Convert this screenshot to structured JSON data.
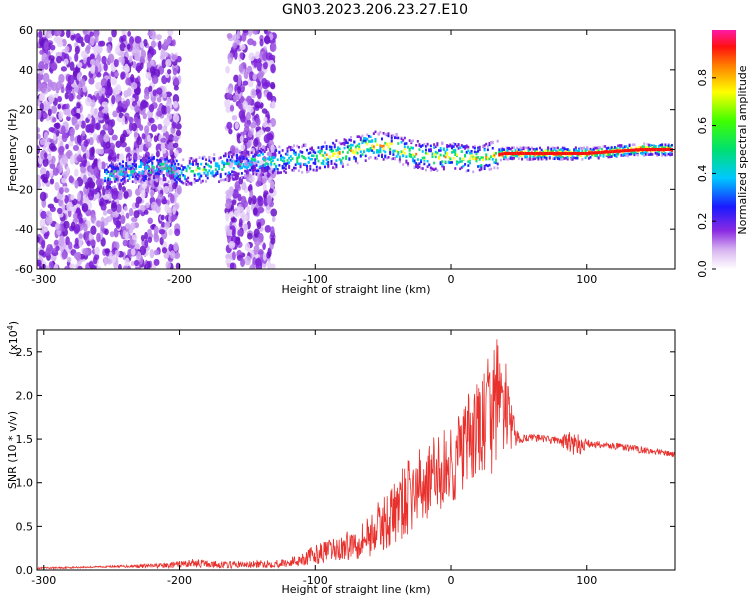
{
  "title": "GN03.2023.206.23.27.E10",
  "colors": {
    "snr_line": "#e8302c",
    "spectro_fg": "#8a2be2"
  },
  "chart_data": [
    {
      "type": "heatmap",
      "name": "spectrogram",
      "xlabel": "Height of straight line (km)",
      "ylabel": "Frequency (Hz)",
      "xlim": [
        -305,
        165
      ],
      "ylim": [
        -60,
        60
      ],
      "x_ticks": [
        -300,
        -200,
        -100,
        0,
        100
      ],
      "x_tick_labels": [
        "-300",
        "-200",
        "-100",
        "0",
        "100"
      ],
      "y_ticks": [
        -60,
        -40,
        -20,
        0,
        20,
        40,
        60
      ],
      "y_tick_labels": [
        "-60",
        "-40",
        "-20",
        "0",
        "20",
        "40",
        "60"
      ],
      "colorbar": {
        "label": "Normalized spectral amplitude",
        "range": [
          0,
          1
        ],
        "ticks": [
          0.0,
          0.2,
          0.4,
          0.6,
          0.8
        ],
        "tick_labels": [
          "0.0",
          "0.2",
          "0.4",
          "0.6",
          "0.8"
        ],
        "colormap": "rainbow (white-violet-blue-cyan-green-yellow-red-magenta)"
      },
      "ridge": {
        "x": [
          -250,
          -230,
          -210,
          -200,
          -180,
          -160,
          -140,
          -120,
          -100,
          -80,
          -60,
          -45,
          -30,
          -15,
          0,
          10,
          20,
          30,
          40,
          60,
          85,
          100,
          120,
          140,
          165
        ],
        "freq": [
          -13,
          -10,
          -9,
          -12,
          -10,
          -8,
          -6,
          -5,
          -4,
          -2,
          2,
          2,
          -2,
          -4,
          -3,
          -4,
          -5,
          -3,
          -2,
          -2,
          -2,
          -2,
          -1,
          0,
          0
        ]
      },
      "noise_regions": [
        {
          "x": [
            -305,
            -200
          ],
          "freq": [
            -60,
            60
          ]
        },
        {
          "x": [
            -165,
            -130
          ],
          "freq": [
            -60,
            60
          ]
        }
      ]
    },
    {
      "type": "line",
      "name": "snr",
      "xlabel": "Height of straight line (km)",
      "ylabel": "SNR (10 * v/v)",
      "multiplier_label": "(x10",
      "multiplier_exp": "4",
      "xlim": [
        -305,
        165
      ],
      "ylim": [
        0,
        2.75
      ],
      "x_ticks": [
        -300,
        -200,
        -100,
        0,
        100
      ],
      "x_tick_labels": [
        "-300",
        "-200",
        "-100",
        "0",
        "100"
      ],
      "y_ticks": [
        0.0,
        0.5,
        1.0,
        1.5,
        2.0,
        2.5
      ],
      "y_tick_labels": [
        "0.0",
        "0.5",
        "1.0",
        "1.5",
        "2.0",
        "2.5"
      ],
      "series": [
        {
          "x": [
            -305,
            -250,
            -210,
            -190,
            -170,
            -150,
            -120,
            -105,
            -95,
            -80,
            -60,
            -45,
            -30,
            -15,
            0,
            10,
            20,
            30,
            35,
            40,
            45,
            50,
            60,
            80,
            90,
            95,
            100,
            120,
            140,
            165
          ],
          "y": [
            0.02,
            0.04,
            0.05,
            0.08,
            0.06,
            0.06,
            0.08,
            0.15,
            0.2,
            0.25,
            0.4,
            0.6,
            0.85,
            1.05,
            1.2,
            1.4,
            1.6,
            1.8,
            2.0,
            1.9,
            1.6,
            1.5,
            1.52,
            1.48,
            1.45,
            1.42,
            1.45,
            1.42,
            1.38,
            1.32
          ],
          "noise": [
            0.01,
            0.01,
            0.03,
            0.05,
            0.04,
            0.04,
            0.05,
            0.1,
            0.12,
            0.15,
            0.25,
            0.35,
            0.45,
            0.45,
            0.5,
            0.55,
            0.6,
            0.75,
            0.7,
            0.55,
            0.25,
            0.05,
            0.04,
            0.05,
            0.15,
            0.12,
            0.05,
            0.04,
            0.04,
            0.03
          ]
        }
      ]
    }
  ]
}
